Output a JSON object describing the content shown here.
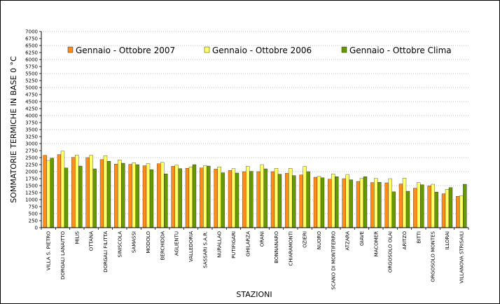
{
  "chart_data": {
    "type": "bar",
    "title": "",
    "xlabel": "STAZIONI",
    "ylabel": "SOMMATORIE TERMICHE IN BASE 0 °C",
    "ylim": [
      0,
      7000
    ],
    "ytick_step": 250,
    "grid": "horizontal-dotted-at-500",
    "legend_position": "top",
    "categories": [
      "VILLA S. PIETRO",
      "DORGALI LANAITTO",
      "MILIS",
      "OTTANA",
      "DORGALI FILITTA",
      "SINISCOLA",
      "SAMASSI",
      "MODOLO",
      "BERCHIDDA",
      "AGLIENTU",
      "VALLEDORIA",
      "SASSARI S.A.R.",
      "NURALLAO",
      "PUTIFIGARI",
      "GHILARZA",
      "ORANI",
      "BONNANARO",
      "CHIARAMONTI",
      "OZIERI",
      "NUORO",
      "SCANO DI MONTIFERRO",
      "ATZARA",
      "GIAVE",
      "MACOMER",
      "ORGOSOLO OLAI",
      "ARITZO",
      "BITTI",
      "ORGOSOLO MONTES",
      "ILLORAI",
      "VILLANOVA STRISAILI"
    ],
    "series": [
      {
        "name": "Gennaio - Ottobre 2007",
        "color": "#ff8c1a",
        "values": [
          2580,
          2610,
          2510,
          2500,
          2430,
          2270,
          2260,
          2210,
          2280,
          2190,
          2120,
          2130,
          2090,
          2040,
          2000,
          2000,
          2000,
          1940,
          1880,
          1800,
          1730,
          1750,
          1650,
          1610,
          1600,
          1560,
          1410,
          1490,
          1210,
          1120
        ]
      },
      {
        "name": "Gennaio - Ottobre 2006",
        "color": "#ffff66",
        "values": [
          2400,
          2730,
          2590,
          2580,
          2570,
          2420,
          2320,
          2290,
          2330,
          2230,
          2170,
          2210,
          2170,
          2110,
          2190,
          2250,
          2120,
          2120,
          2180,
          1830,
          1920,
          1900,
          1760,
          1760,
          1750,
          1770,
          1610,
          1550,
          1370,
          1130
        ]
      },
      {
        "name": "Gennaio - Ottobre Clima",
        "color": "#669900",
        "values": [
          2480,
          2130,
          2200,
          2100,
          2370,
          2300,
          2250,
          2070,
          1920,
          2110,
          2250,
          2200,
          1960,
          1950,
          2010,
          2100,
          1910,
          1860,
          2000,
          1780,
          1820,
          1710,
          1820,
          1620,
          1280,
          1300,
          1530,
          1270,
          1430,
          1550
        ]
      }
    ]
  }
}
